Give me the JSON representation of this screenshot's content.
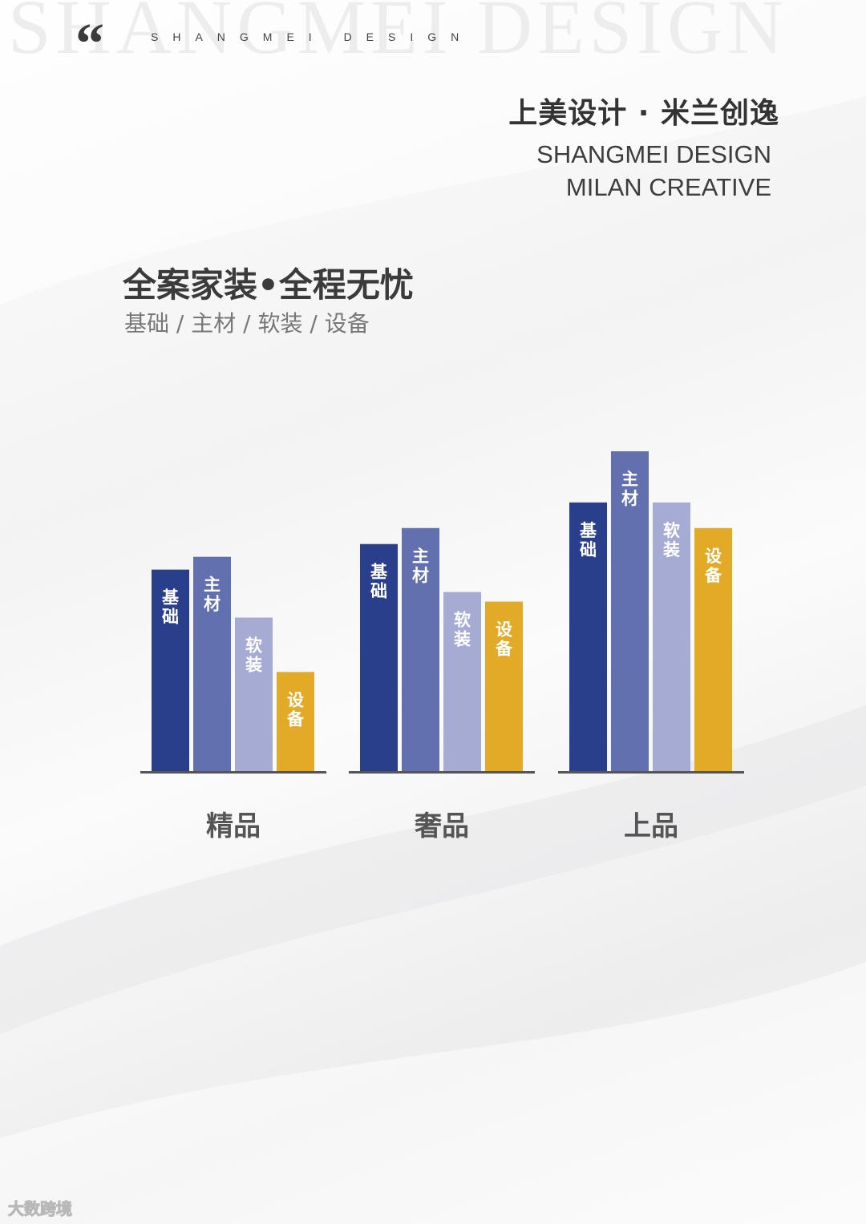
{
  "header": {
    "watermark": "SHANGMEI DESIGN",
    "quote_glyph": "“",
    "tagline": "SHANGMEI DESIGN"
  },
  "brand": {
    "cn": "上美设计 · 米兰创逸",
    "en_line1": "SHANGMEI DESIGN",
    "en_line2": "MILAN CREATIVE"
  },
  "title": "全案家装•全程无忧",
  "subtitle": "基础 / 主材 / 软装 / 设备",
  "corner_mark": "大数跨境",
  "chart_data": {
    "type": "bar",
    "title": "",
    "xlabel": "",
    "ylabel": "",
    "ylim": [
      0,
      100
    ],
    "grid": false,
    "legend": "none",
    "categories": [
      "精品",
      "奢品",
      "上品"
    ],
    "series": [
      {
        "name": "基础",
        "color": "#2a3f8c",
        "values": [
          63,
          71,
          84
        ]
      },
      {
        "name": "主材",
        "color": "#6370b0",
        "values": [
          67,
          76,
          100
        ]
      },
      {
        "name": "软装",
        "color": "#a6abd4",
        "values": [
          48,
          56,
          84
        ]
      },
      {
        "name": "设备",
        "color": "#e3aa28",
        "values": [
          31,
          53,
          76
        ]
      }
    ]
  }
}
